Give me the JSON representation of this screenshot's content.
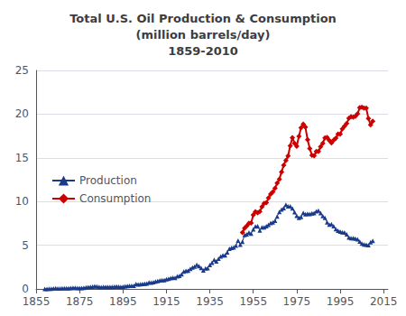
{
  "chart_data": {
    "type": "line",
    "title": "Total U.S. Oil Production & Consumption\n(million barrels/day)\n1859-2010",
    "series": [
      {
        "name": "Production",
        "color": "#1a3a8a",
        "marker": "triangle",
        "line_style": "solid",
        "x": [
          1859,
          1860,
          1861,
          1862,
          1863,
          1864,
          1865,
          1866,
          1867,
          1868,
          1869,
          1870,
          1871,
          1872,
          1873,
          1874,
          1875,
          1876,
          1877,
          1878,
          1879,
          1880,
          1881,
          1882,
          1883,
          1884,
          1885,
          1886,
          1887,
          1888,
          1889,
          1890,
          1891,
          1892,
          1893,
          1894,
          1895,
          1896,
          1897,
          1898,
          1899,
          1900,
          1901,
          1902,
          1903,
          1904,
          1905,
          1906,
          1907,
          1908,
          1909,
          1910,
          1911,
          1912,
          1913,
          1914,
          1915,
          1916,
          1917,
          1918,
          1919,
          1920,
          1921,
          1922,
          1923,
          1924,
          1925,
          1926,
          1927,
          1928,
          1929,
          1930,
          1931,
          1932,
          1933,
          1934,
          1935,
          1936,
          1937,
          1938,
          1939,
          1940,
          1941,
          1942,
          1943,
          1944,
          1945,
          1946,
          1947,
          1948,
          1949,
          1950,
          1951,
          1952,
          1953,
          1954,
          1955,
          1956,
          1957,
          1958,
          1959,
          1960,
          1961,
          1962,
          1963,
          1964,
          1965,
          1966,
          1967,
          1968,
          1969,
          1970,
          1971,
          1972,
          1973,
          1974,
          1975,
          1976,
          1977,
          1978,
          1979,
          1980,
          1981,
          1982,
          1983,
          1984,
          1985,
          1986,
          1987,
          1988,
          1989,
          1990,
          1991,
          1992,
          1993,
          1994,
          1995,
          1996,
          1997,
          1998,
          1999,
          2000,
          2001,
          2002,
          2003,
          2004,
          2005,
          2006,
          2007,
          2008,
          2009,
          2010
        ],
        "values": [
          0.0,
          0.01,
          0.02,
          0.03,
          0.05,
          0.07,
          0.06,
          0.06,
          0.07,
          0.08,
          0.09,
          0.09,
          0.1,
          0.13,
          0.12,
          0.1,
          0.11,
          0.11,
          0.14,
          0.17,
          0.2,
          0.22,
          0.27,
          0.3,
          0.29,
          0.24,
          0.2,
          0.23,
          0.24,
          0.24,
          0.24,
          0.22,
          0.26,
          0.28,
          0.27,
          0.24,
          0.27,
          0.3,
          0.34,
          0.36,
          0.37,
          0.37,
          0.56,
          0.52,
          0.54,
          0.57,
          0.6,
          0.63,
          0.74,
          0.72,
          0.77,
          0.84,
          0.9,
          0.98,
          1.01,
          1.02,
          1.1,
          1.15,
          1.25,
          1.3,
          1.27,
          1.44,
          1.49,
          1.68,
          1.99,
          2.07,
          2.08,
          2.3,
          2.46,
          2.56,
          2.76,
          2.6,
          2.4,
          2.12,
          2.35,
          2.38,
          2.73,
          2.99,
          3.32,
          3.16,
          3.46,
          3.71,
          3.85,
          3.84,
          4.18,
          4.59,
          4.7,
          4.75,
          4.97,
          5.52,
          5.05,
          5.41,
          6.16,
          6.26,
          6.46,
          6.34,
          6.81,
          7.15,
          7.17,
          6.7,
          7.05,
          7.04,
          7.18,
          7.33,
          7.54,
          7.61,
          7.8,
          8.3,
          8.81,
          9.1,
          9.24,
          9.64,
          9.46,
          9.44,
          9.21,
          8.77,
          8.37,
          8.13,
          8.24,
          8.71,
          8.55,
          8.6,
          8.57,
          8.65,
          8.69,
          8.88,
          8.97,
          8.68,
          8.35,
          8.14,
          7.61,
          7.36,
          7.42,
          7.17,
          6.85,
          6.66,
          6.56,
          6.47,
          6.45,
          6.25,
          5.88,
          5.82,
          5.8,
          5.75,
          5.68,
          5.42,
          5.18,
          5.1,
          5.06,
          5.0,
          5.35,
          5.51
        ]
      },
      {
        "name": "Consumption",
        "color": "#cc0000",
        "marker": "diamond",
        "line_style": "solid",
        "x": [
          1950,
          1951,
          1952,
          1953,
          1954,
          1955,
          1956,
          1957,
          1958,
          1959,
          1960,
          1961,
          1962,
          1963,
          1964,
          1965,
          1966,
          1967,
          1968,
          1969,
          1970,
          1971,
          1972,
          1973,
          1974,
          1975,
          1976,
          1977,
          1978,
          1979,
          1980,
          1981,
          1982,
          1983,
          1984,
          1985,
          1986,
          1987,
          1988,
          1989,
          1990,
          1991,
          1992,
          1993,
          1994,
          1995,
          1996,
          1997,
          1998,
          1999,
          2000,
          2001,
          2002,
          2003,
          2004,
          2005,
          2006,
          2007,
          2008,
          2009,
          2010
        ],
        "values": [
          6.46,
          6.96,
          7.2,
          7.51,
          7.53,
          8.46,
          8.83,
          8.71,
          8.87,
          9.39,
          9.8,
          9.86,
          10.4,
          10.85,
          11.1,
          11.51,
          12.1,
          12.56,
          13.39,
          14.14,
          14.7,
          15.21,
          16.37,
          17.31,
          16.65,
          16.32,
          17.46,
          18.43,
          18.85,
          18.51,
          17.06,
          16.06,
          15.3,
          15.23,
          15.73,
          15.73,
          16.28,
          16.66,
          17.28,
          17.33,
          16.99,
          16.71,
          17.03,
          17.24,
          17.72,
          17.72,
          18.31,
          18.62,
          18.92,
          19.52,
          19.7,
          19.65,
          19.76,
          20.03,
          20.73,
          20.8,
          20.69,
          20.68,
          19.5,
          18.77,
          19.18
        ]
      }
    ],
    "xlim": [
      1855,
      2017
    ],
    "xticks": [
      1855,
      1875,
      1895,
      1915,
      1935,
      1955,
      1975,
      1995,
      2015
    ],
    "ylim": [
      0,
      25
    ],
    "yticks": [
      0,
      5,
      10,
      15,
      20,
      25
    ],
    "grid": "y",
    "legend": "center left"
  }
}
